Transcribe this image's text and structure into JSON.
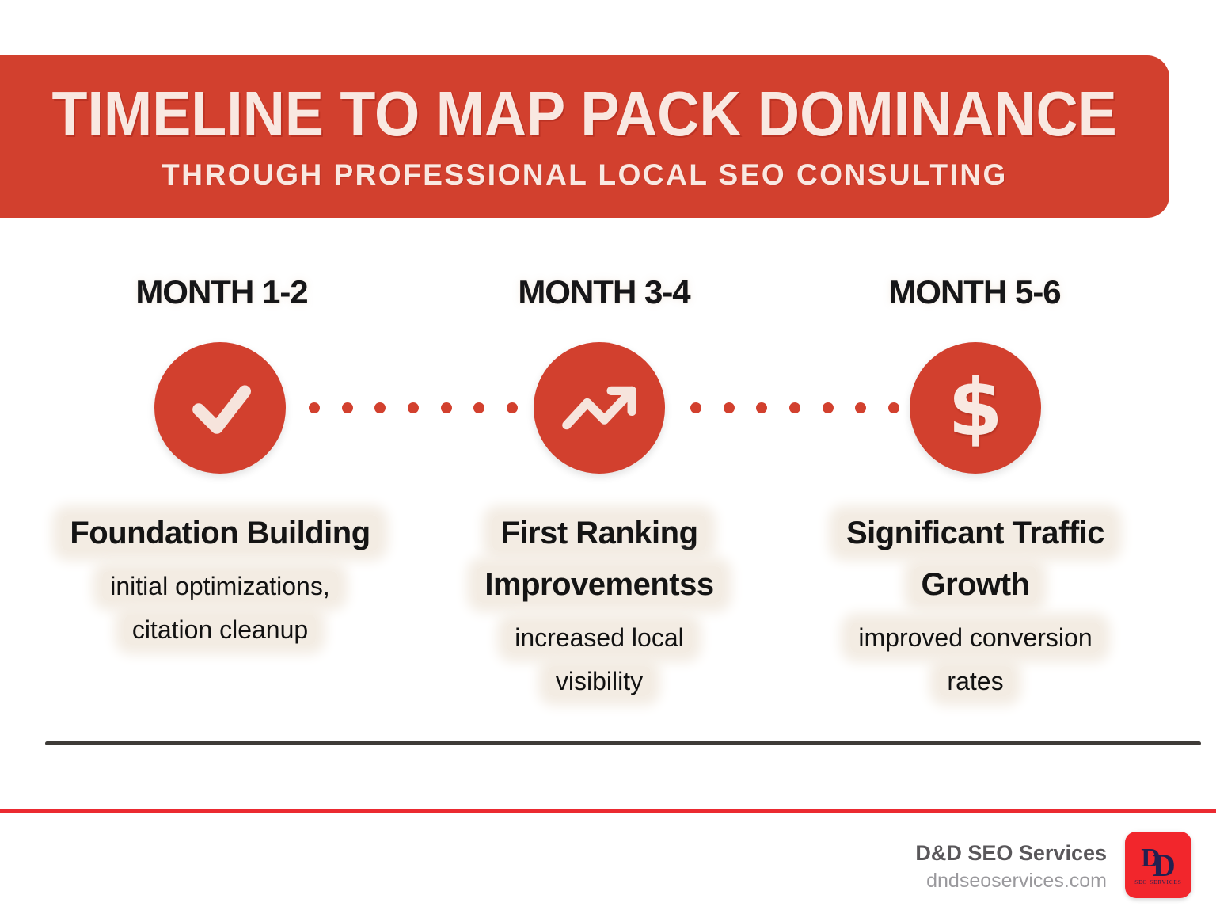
{
  "header": {
    "title": "TIMELINE TO MAP PACK DOMINANCE",
    "subtitle": "THROUGH PROFESSIONAL LOCAL SEO CONSULTING"
  },
  "milestones": [
    {
      "label": "MONTH 1-2",
      "icon": "check-icon",
      "heading_lines": [
        "Foundation Building"
      ],
      "desc_lines": [
        "initial optimizations,",
        "citation cleanup"
      ]
    },
    {
      "label": "MONTH 3-4",
      "icon": "trending-up-icon",
      "heading_lines": [
        "First Ranking",
        "Improvementss"
      ],
      "desc_lines": [
        "increased local",
        "visibility"
      ]
    },
    {
      "label": "MONTH 5-6",
      "icon": "dollar-icon",
      "heading_lines": [
        "Significant Traffic",
        "Growth"
      ],
      "desc_lines": [
        "improved conversion",
        "rates"
      ]
    }
  ],
  "connector_dot_count": 7,
  "footer": {
    "company": "D&D SEO Services",
    "website": "dndseoservices.com",
    "logo_monogram_1": "D",
    "logo_monogram_2": "D",
    "logo_caption": "SEO SERVICES"
  },
  "colors": {
    "red": "#D2402E",
    "cream-text": "#F9E8E1",
    "blob": "#F3ECE3",
    "ink": "#161618",
    "rule-dark": "#3E3B38",
    "rule-red": "#EB2A31",
    "logo-red": "#F2262C",
    "navy": "#232050",
    "gray-company": "#59575A",
    "gray-site": "#9A999D"
  }
}
